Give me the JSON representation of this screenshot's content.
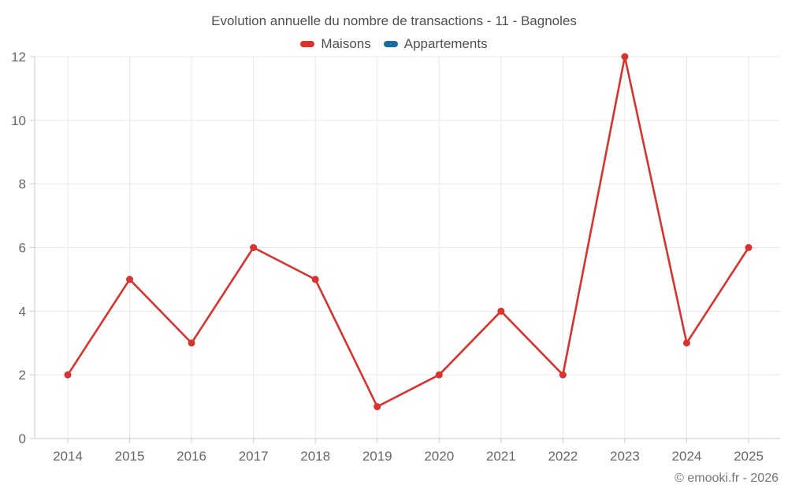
{
  "page": {
    "title": "Evolution annuelle du nombre de transactions - 11 - Bagnoles",
    "footer": "© emooki.fr - 2026"
  },
  "legend": {
    "items": [
      {
        "label": "Maisons",
        "color": "#d8332f"
      },
      {
        "label": "Appartements",
        "color": "#1d6b9e"
      }
    ]
  },
  "chart_data": {
    "type": "line",
    "title": "Evolution annuelle du nombre de transactions - 11 - Bagnoles",
    "categories": [
      "2014",
      "2015",
      "2016",
      "2017",
      "2018",
      "2019",
      "2020",
      "2021",
      "2022",
      "2023",
      "2024",
      "2025"
    ],
    "series": [
      {
        "name": "Maisons",
        "color": "#d8332f",
        "values": [
          2,
          5,
          3,
          6,
          5,
          1,
          2,
          4,
          2,
          12,
          3,
          6
        ]
      },
      {
        "name": "Appartements",
        "color": "#1d6b9e",
        "values": []
      }
    ],
    "xlabel": "",
    "ylabel": "",
    "ylim": [
      0,
      12
    ],
    "yticks": [
      0,
      2,
      4,
      6,
      8,
      10,
      12
    ],
    "grid": true,
    "legend_position": "top",
    "point_markers": true
  }
}
